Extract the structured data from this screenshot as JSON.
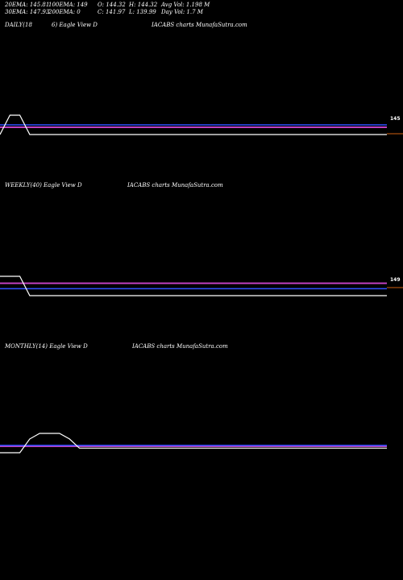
{
  "header": {
    "ema20": "20EMA: 145.81",
    "ema100": "100EMA: 149",
    "open": "O: 144.32",
    "high": "H: 144.32",
    "avg_vol": "Avg Vol: 1.198 M",
    "ema30": "30EMA: 147.93",
    "ema200": "200EMA: 0",
    "close": "C: 141.97",
    "low": "L: 139.99",
    "day_vol": "Day Vol: 1.7 M"
  },
  "panels": {
    "daily": {
      "title_a": "DAILY(18",
      "title_b": "6) Eagle   View  D",
      "title_c": "IACABS charts MunafaSutra.com"
    },
    "weekly": {
      "title_a": "WEEKLY(40) Eagle   View  D",
      "title_c": "IACABS charts MunafaSutra.com"
    },
    "monthly": {
      "title_a": "MONTHLY(14) Eagle   View  D",
      "title_c": "IACABS charts MunafaSutra.com"
    }
  },
  "colors": {
    "background": "#000000",
    "ema_magenta": "#c040c0",
    "ema_blue": "#3050ff",
    "price_white": "#ffffff",
    "marker_orange": "#d06010"
  },
  "chart_data": [
    {
      "type": "line",
      "panel": "daily",
      "price_label": "145",
      "series": [
        {
          "role": "price",
          "values": [
            142,
            150,
            150,
            142,
            142,
            142,
            142,
            142,
            142,
            142,
            142,
            142,
            142,
            142,
            142,
            142,
            142,
            142,
            142,
            142,
            142,
            142,
            142,
            142,
            142,
            142,
            142,
            142,
            142,
            142,
            142,
            142,
            142,
            142,
            142,
            142,
            142,
            142,
            142,
            142
          ]
        },
        {
          "role": "ema-magenta",
          "values": [
            145,
            145,
            145,
            145,
            145,
            145,
            145,
            145,
            145,
            145,
            145,
            145,
            145,
            145,
            145,
            145,
            145,
            145,
            145,
            145,
            145,
            145,
            145,
            145,
            145,
            145,
            145,
            145,
            145,
            145,
            145,
            145,
            145,
            145,
            145,
            145,
            145,
            145,
            145,
            145
          ]
        },
        {
          "role": "ema-blue",
          "values": [
            146,
            146,
            146,
            146,
            146,
            146,
            146,
            146,
            146,
            146,
            146,
            146,
            146,
            146,
            146,
            146,
            146,
            146,
            146,
            146,
            146,
            146,
            146,
            146,
            146,
            146,
            146,
            146,
            146,
            146,
            146,
            146,
            146,
            146,
            146,
            146,
            146,
            146,
            146,
            146
          ]
        }
      ]
    },
    {
      "type": "line",
      "panel": "weekly",
      "price_label": "149",
      "series": [
        {
          "role": "price",
          "values": [
            160,
            160,
            160,
            135,
            135,
            135,
            135,
            135,
            135,
            135,
            135,
            135,
            135,
            135,
            135,
            135,
            135,
            135,
            135,
            135,
            135,
            135,
            135,
            135,
            135,
            135,
            135,
            135,
            135,
            135,
            135,
            135,
            135,
            135,
            135,
            135,
            135,
            135,
            135,
            135
          ]
        },
        {
          "role": "ema-magenta",
          "values": [
            151,
            151,
            151,
            151,
            151,
            151,
            151,
            151,
            151,
            151,
            151,
            151,
            151,
            151,
            151,
            151,
            151,
            151,
            151,
            151,
            151,
            151,
            151,
            151,
            151,
            151,
            151,
            151,
            151,
            151,
            151,
            151,
            151,
            151,
            151,
            151,
            151,
            151,
            151,
            151
          ]
        },
        {
          "role": "ema-blue",
          "values": [
            144,
            144,
            144,
            144,
            144,
            144,
            144,
            144,
            144,
            144,
            144,
            144,
            144,
            144,
            144,
            144,
            144,
            144,
            144,
            144,
            144,
            144,
            144,
            144,
            144,
            144,
            144,
            144,
            144,
            144,
            144,
            144,
            144,
            144,
            144,
            144,
            144,
            144,
            144,
            144
          ]
        }
      ]
    },
    {
      "type": "line",
      "panel": "monthly",
      "series": [
        {
          "role": "price",
          "values": [
            135,
            135,
            135,
            150,
            156,
            156,
            156,
            150,
            140,
            140,
            140,
            140,
            140,
            140,
            140,
            140,
            140,
            140,
            140,
            140,
            140,
            140,
            140,
            140,
            140,
            140,
            140,
            140,
            140,
            140,
            140,
            140,
            140,
            140,
            140,
            140,
            140,
            140,
            140,
            140
          ]
        },
        {
          "role": "ema-magenta",
          "values": [
            142,
            142,
            142,
            142,
            142,
            142,
            142,
            142,
            142,
            142,
            142,
            142,
            142,
            142,
            142,
            142,
            142,
            142,
            142,
            142,
            142,
            142,
            142,
            142,
            142,
            142,
            142,
            142,
            142,
            142,
            142,
            142,
            142,
            142,
            142,
            142,
            142,
            142,
            142,
            142
          ]
        },
        {
          "role": "ema-blue",
          "values": [
            143,
            143,
            143,
            143,
            143,
            143,
            143,
            143,
            143,
            143,
            143,
            143,
            143,
            143,
            143,
            143,
            143,
            143,
            143,
            143,
            143,
            143,
            143,
            143,
            143,
            143,
            143,
            143,
            143,
            143,
            143,
            143,
            143,
            143,
            143,
            143,
            143,
            143,
            143,
            143
          ]
        }
      ]
    }
  ]
}
